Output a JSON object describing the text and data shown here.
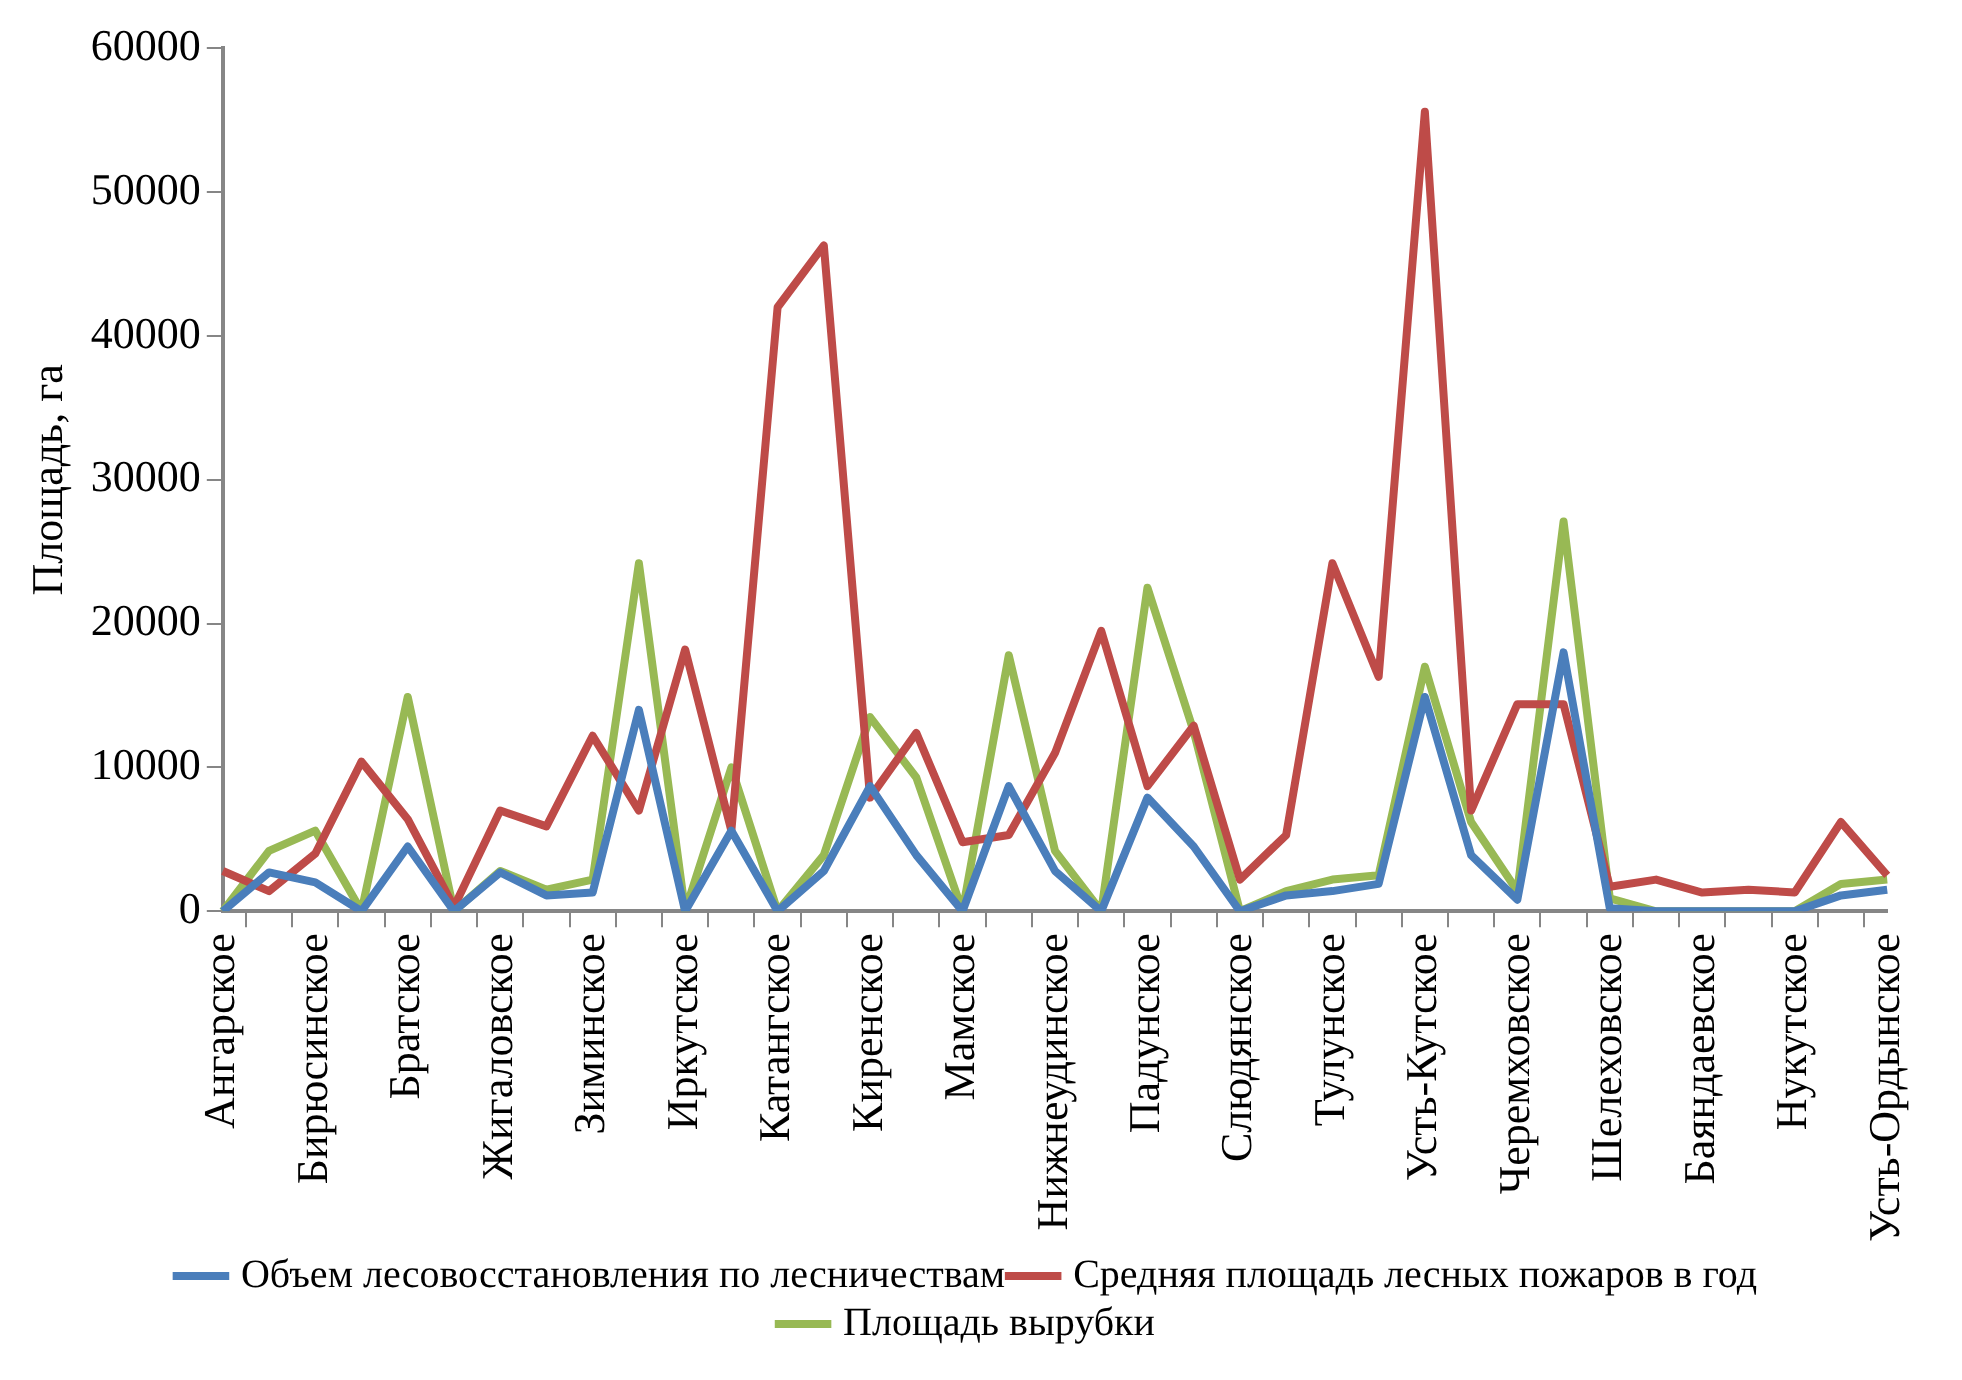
{
  "chart_data": {
    "type": "line",
    "ylabel": "Площадь, га",
    "categories": [
      "Ангарское",
      null,
      "Бирюсинское",
      null,
      "Братское",
      null,
      "Жигаловское",
      null,
      "Зиминское",
      null,
      "Иркутское",
      null,
      "Катангское",
      null,
      "Киренское",
      null,
      "Мамское",
      null,
      "Нижнеудинское",
      null,
      "Падунское",
      null,
      "Слюдянское",
      null,
      "Тулунское",
      null,
      "Усть-Кутское",
      null,
      "Черемховское",
      null,
      "Шелеховское",
      null,
      "Баяндаевское",
      null,
      "Нукутское",
      null,
      "Усть-Ордынское"
    ],
    "series": [
      {
        "name": "Объем лесовосстановления по лесничествам",
        "color": "#4a7ebb",
        "values": [
          0,
          2700,
          2000,
          0,
          4500,
          0,
          2700,
          1100,
          1300,
          14000,
          0,
          5600,
          0,
          2800,
          8700,
          3900,
          0,
          8700,
          2800,
          0,
          7900,
          4500,
          0,
          1100,
          1400,
          1900,
          14900,
          3900,
          800,
          18000,
          200,
          0,
          0,
          0,
          0,
          1100,
          1500
        ]
      },
      {
        "name": "Средняя площадь лесных пожаров в год",
        "color": "#be4b48",
        "values": [
          2800,
          1400,
          4000,
          10400,
          6400,
          300,
          7000,
          5900,
          12200,
          7000,
          18200,
          5600,
          42000,
          46300,
          7900,
          12400,
          4800,
          5300,
          11000,
          19500,
          8700,
          12900,
          2200,
          5300,
          24200,
          16300,
          55600,
          7000,
          14400,
          14400,
          1700,
          2200,
          1300,
          1500,
          1300,
          6200,
          2500
        ]
      },
      {
        "name": "Площадь вырубки",
        "color": "#98b954",
        "values": [
          0,
          4200,
          5600,
          0,
          14900,
          0,
          2800,
          1500,
          2200,
          24200,
          0,
          10000,
          0,
          3900,
          13500,
          9300,
          0,
          17800,
          4200,
          0,
          22500,
          12500,
          0,
          1400,
          2200,
          2500,
          17000,
          6200,
          1400,
          27100,
          900,
          0,
          0,
          0,
          0,
          1900,
          2200
        ]
      }
    ],
    "ylim": [
      0,
      60000
    ],
    "yticks": [
      0,
      10000,
      20000,
      30000,
      40000,
      50000,
      60000
    ],
    "grid": false,
    "legend": "bottom",
    "marker": "none",
    "line_style": "solid"
  }
}
